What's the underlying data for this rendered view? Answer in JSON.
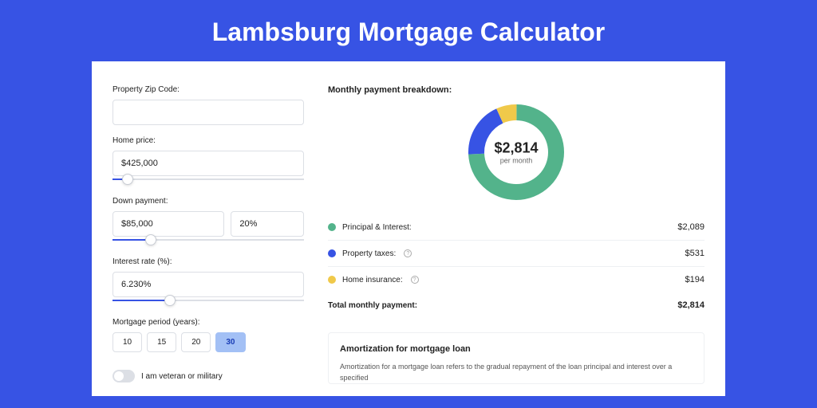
{
  "page": {
    "title": "Lambsburg Mortgage Calculator",
    "bg_color": "#3753e4",
    "card_bg": "#ffffff"
  },
  "form": {
    "zip": {
      "label": "Property Zip Code:",
      "value": ""
    },
    "home_price": {
      "label": "Home price:",
      "value": "$425,000",
      "slider_pct": 8
    },
    "down_payment": {
      "label": "Down payment:",
      "amount": "$85,000",
      "percent": "20%",
      "slider_pct": 20
    },
    "interest": {
      "label": "Interest rate (%):",
      "value": "6.230%",
      "slider_pct": 30
    },
    "period": {
      "label": "Mortgage period (years):",
      "options": [
        "10",
        "15",
        "20",
        "30"
      ],
      "selected": "30"
    },
    "veteran": {
      "label": "I am veteran or military",
      "checked": false
    }
  },
  "breakdown": {
    "title": "Monthly payment breakdown:",
    "donut": {
      "amount": "$2,814",
      "per": "per month",
      "segments": [
        {
          "color": "#53b38b",
          "pct": 74.2
        },
        {
          "color": "#3753e4",
          "pct": 18.9
        },
        {
          "color": "#f0c94a",
          "pct": 6.9
        }
      ],
      "size": 120,
      "thickness": 20
    },
    "items": [
      {
        "color": "#53b38b",
        "label": "Principal & Interest:",
        "value": "$2,089",
        "help": false
      },
      {
        "color": "#3753e4",
        "label": "Property taxes:",
        "value": "$531",
        "help": true
      },
      {
        "color": "#f0c94a",
        "label": "Home insurance:",
        "value": "$194",
        "help": true
      }
    ],
    "total": {
      "label": "Total monthly payment:",
      "value": "$2,814"
    }
  },
  "amort": {
    "title": "Amortization for mortgage loan",
    "text": "Amortization for a mortgage loan refers to the gradual repayment of the loan principal and interest over a specified"
  }
}
